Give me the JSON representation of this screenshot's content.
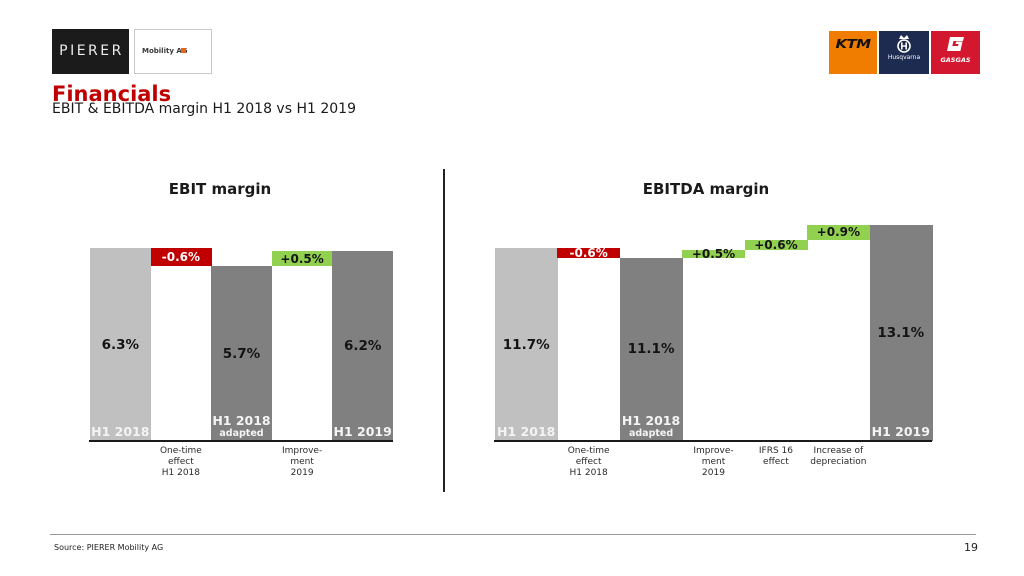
{
  "header": {
    "logo_left": "PIERER",
    "logo_right": "Mobility AG",
    "title": "Financials",
    "subtitle": "EBIT & EBITDA margin H1 2018 vs H1 2019"
  },
  "brands": [
    {
      "name": "KTM",
      "color": "#f07d00"
    },
    {
      "name": "Husqvarna",
      "color": "#1d2b50"
    },
    {
      "name": "GASGAS",
      "color": "#d3172f"
    }
  ],
  "chart_data": [
    {
      "type": "bar",
      "subtype": "waterfall",
      "title": "EBIT margin",
      "unit": "%",
      "colors": {
        "start": "#c0c0c0",
        "total": "#808080",
        "negative": "#c00000",
        "positive": "#92d050"
      },
      "steps": [
        {
          "kind": "total",
          "value": 6.3,
          "label": "6.3%",
          "category": "H1 2018"
        },
        {
          "kind": "delta",
          "value": -0.6,
          "label": "-0.6%",
          "below": [
            "One-time",
            "effect",
            "H1 2018"
          ]
        },
        {
          "kind": "total",
          "value": 5.7,
          "label": "5.7%",
          "category": "H1 2018",
          "sublabel": "adapted"
        },
        {
          "kind": "delta",
          "value": 0.5,
          "label": "+0.5%",
          "below": [
            "Improve-",
            "ment",
            "2019"
          ]
        },
        {
          "kind": "total",
          "value": 6.2,
          "label": "6.2%",
          "category": "H1 2019"
        }
      ]
    },
    {
      "type": "bar",
      "subtype": "waterfall",
      "title": "EBITDA margin",
      "unit": "%",
      "colors": {
        "start": "#c0c0c0",
        "total": "#808080",
        "negative": "#c00000",
        "positive": "#92d050"
      },
      "steps": [
        {
          "kind": "total",
          "value": 11.7,
          "label": "11.7%",
          "category": "H1 2018"
        },
        {
          "kind": "delta",
          "value": -0.6,
          "label": "-0.6%",
          "below": [
            "One-time",
            "effect",
            "H1 2018"
          ]
        },
        {
          "kind": "total",
          "value": 11.1,
          "label": "11.1%",
          "category": "H1 2018",
          "sublabel": "adapted"
        },
        {
          "kind": "delta",
          "value": 0.5,
          "label": "+0.5%",
          "below": [
            "Improve-",
            "ment",
            "2019"
          ]
        },
        {
          "kind": "delta",
          "value": 0.6,
          "label": "+0.6%",
          "below": [
            "IFRS 16",
            "effect"
          ]
        },
        {
          "kind": "delta",
          "value": 0.9,
          "label": "+0.9%",
          "below": [
            "Increase of",
            "depreciation"
          ]
        },
        {
          "kind": "total",
          "value": 13.1,
          "label": "13.1%",
          "category": "H1 2019"
        }
      ]
    }
  ],
  "footer": {
    "source": "Source: PIERER Mobility AG",
    "page_number": "19"
  }
}
